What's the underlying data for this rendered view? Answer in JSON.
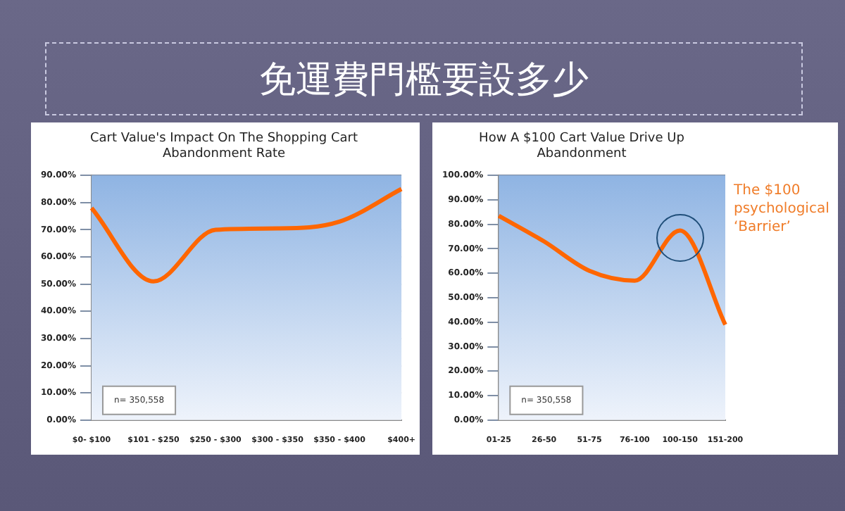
{
  "chart_data": [
    {
      "type": "other",
      "title": "免運費門檻要設多少"
    },
    {
      "type": "line",
      "title": "Cart Value's Impact On The Shopping Cart Abandonment Rate",
      "categories": [
        "$0- $100",
        "$101 - $250",
        "$250 - $300",
        "$300 - $350",
        "$350 - $400",
        "$400+"
      ],
      "series": [
        {
          "color": "#ff6600",
          "values": [
            78,
            51,
            70,
            70.5,
            73,
            85
          ]
        }
      ],
      "ylim": [
        0,
        90
      ],
      "yticks": [
        {
          "value": 0,
          "label": "0.00%"
        },
        {
          "value": 10,
          "label": "10.00%"
        },
        {
          "value": 20,
          "label": "20.00%"
        },
        {
          "value": 30,
          "label": "30.00%"
        },
        {
          "value": 40,
          "label": "40.00%"
        },
        {
          "value": 50,
          "label": "50.00%"
        },
        {
          "value": 60,
          "label": "60.00%"
        },
        {
          "value": 70,
          "label": "70.00%"
        },
        {
          "value": 80,
          "label": "80.00%"
        },
        {
          "value": 90,
          "label": "90.00%"
        }
      ],
      "grid": "y",
      "legend": false,
      "marker": "none",
      "annotations": [
        "n= 350,558"
      ]
    },
    {
      "type": "line",
      "title": "How A $100 Cart Value Drive Up Abandonment",
      "categories": [
        "01-25",
        "26-50",
        "51-75",
        "76-100",
        "100-150",
        "151-200"
      ],
      "series": [
        {
          "color": "#ff6600",
          "values": [
            83.5,
            73,
            61,
            57,
            77.5,
            39
          ]
        }
      ],
      "ylim": [
        0,
        100
      ],
      "yticks": [
        {
          "value": 0,
          "label": "0.00%"
        },
        {
          "value": 10,
          "label": "10.00%"
        },
        {
          "value": 20,
          "label": "20.00%"
        },
        {
          "value": 30,
          "label": "30.00%"
        },
        {
          "value": 40,
          "label": "40.00%"
        },
        {
          "value": 50,
          "label": "50.00%"
        },
        {
          "value": 60,
          "label": "60.00%"
        },
        {
          "value": 70,
          "label": "70.00%"
        },
        {
          "value": 80,
          "label": "80.00%"
        },
        {
          "value": 90,
          "label": "90.00%"
        },
        {
          "value": 100,
          "label": "100.00%"
        }
      ],
      "grid": "y",
      "legend": false,
      "marker": "none",
      "annotations": [
        "n= 350,558",
        "The $100 psychological ‘Barrier’"
      ]
    }
  ]
}
